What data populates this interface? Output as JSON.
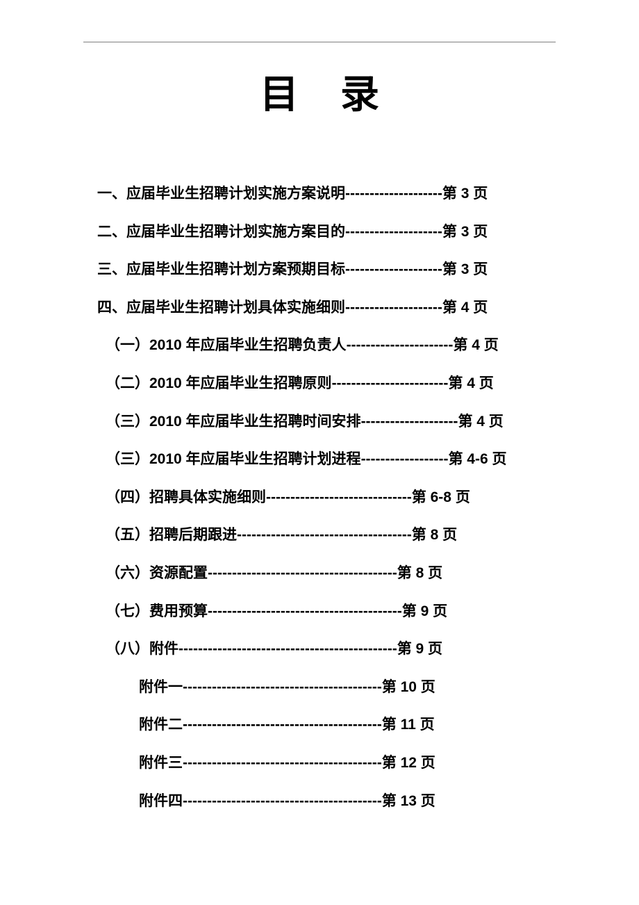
{
  "title": "目录",
  "text_color": "#000000",
  "background_color": "#ffffff",
  "rule_color": "#808080",
  "title_fontsize": 56,
  "entry_fontsize": 21,
  "line_height": 2.6,
  "entries": [
    {
      "label": "一、应届毕业生招聘计划实施方案说明",
      "leader": "--------------------",
      "page": "第 3 页",
      "indent": 0
    },
    {
      "label": "二、应届毕业生招聘计划实施方案目的",
      "leader": "--------------------",
      "page": "第 3 页",
      "indent": 0
    },
    {
      "label": "三、应届毕业生招聘计划方案预期目标",
      "leader": "--------------------",
      "page": "第 3 页",
      "indent": 0
    },
    {
      "label": "四、应届毕业生招聘计划具体实施细则",
      "leader": "--------------------",
      "page": "第 4 页",
      "indent": 0
    },
    {
      "label": "（一）2010 年应届毕业生招聘负责人",
      "leader": "----------------------",
      "page": "第 4 页",
      "indent": 1
    },
    {
      "label": "（二）2010 年应届毕业生招聘原则",
      "leader": "------------------------",
      "page": "第 4 页",
      "indent": 1
    },
    {
      "label": "（三）2010 年应届毕业生招聘时间安排",
      "leader": "--------------------",
      "page": "第 4 页",
      "indent": 1
    },
    {
      "label": "（三）2010 年应届毕业生招聘计划进程",
      "leader": "------------------",
      "page": "第 4-6 页",
      "indent": 1
    },
    {
      "label": "（四）招聘具体实施细则",
      "leader": "------------------------------",
      "page": "第 6-8 页",
      "indent": 1
    },
    {
      "label": "（五）招聘后期跟进",
      "leader": "------------------------------------",
      "page": "第 8 页",
      "indent": 1
    },
    {
      "label": "（六）资源配置",
      "leader": "---------------------------------------",
      "page": "第 8 页",
      "indent": 1
    },
    {
      "label": "（七）费用预算",
      "leader": "----------------------------------------",
      "page": "第 9 页",
      "indent": 1
    },
    {
      "label": "（八）附件",
      "leader": "---------------------------------------------",
      "page": "第 9 页",
      "indent": 1
    },
    {
      "label": "附件一",
      "leader": "-----------------------------------------",
      "page": "第 10 页",
      "indent": 2
    },
    {
      "label": "附件二",
      "leader": "-----------------------------------------",
      "page": "第 11 页",
      "indent": 2
    },
    {
      "label": "附件三",
      "leader": "-----------------------------------------",
      "page": "第 12 页",
      "indent": 2
    },
    {
      "label": "附件四",
      "leader": "-----------------------------------------",
      "page": "第 13 页",
      "indent": 2
    }
  ]
}
